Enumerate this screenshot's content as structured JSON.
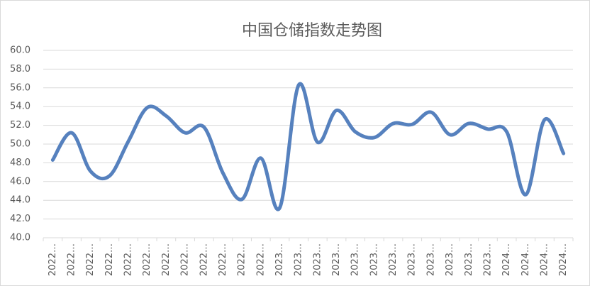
{
  "chart_data": {
    "type": "line",
    "title": "中国仓储指数走势图",
    "categories": [
      "2022…",
      "2022…",
      "2022…",
      "2022…",
      "2022…",
      "2022…",
      "2022…",
      "2022…",
      "2022…",
      "2022…",
      "2022…",
      "2022…",
      "2023…",
      "2023…",
      "2023…",
      "2023…",
      "2023…",
      "2023…",
      "2023…",
      "2023…",
      "2023…",
      "2023…",
      "2023…",
      "2023…",
      "2024…",
      "2024…",
      "2024…",
      "2024…"
    ],
    "series": [
      {
        "color": "#5681be",
        "values": [
          48.3,
          51.2,
          47.1,
          46.6,
          50.3,
          53.9,
          53.0,
          51.2,
          51.8,
          46.9,
          44.1,
          48.5,
          43.2,
          56.3,
          50.2,
          53.6,
          51.3,
          50.7,
          52.2,
          52.1,
          53.4,
          51.0,
          52.2,
          51.6,
          51.3,
          44.6,
          52.6,
          49.0
        ]
      }
    ],
    "ylim": [
      40,
      60
    ],
    "yticks": [
      {
        "value": 40,
        "label": "40.0"
      },
      {
        "value": 42,
        "label": "42.0"
      },
      {
        "value": 44,
        "label": "44.0"
      },
      {
        "value": 46,
        "label": "46.0"
      },
      {
        "value": 48,
        "label": "48.0"
      },
      {
        "value": 50,
        "label": "50.0"
      },
      {
        "value": 52,
        "label": "52.0"
      },
      {
        "value": 54,
        "label": "54.0"
      },
      {
        "value": 56,
        "label": "56.0"
      },
      {
        "value": 58,
        "label": "58.0"
      },
      {
        "value": 60,
        "label": "60.0"
      }
    ],
    "grid": true
  }
}
